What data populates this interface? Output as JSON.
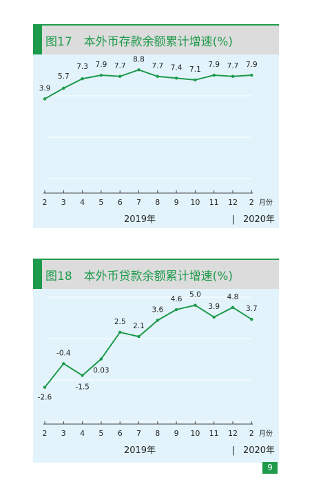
{
  "page_number": "9",
  "chart_data": [
    {
      "type": "line",
      "title": "图17　本外币存款余额累计增速(%)",
      "categories": [
        "2",
        "3",
        "4",
        "5",
        "6",
        "7",
        "8",
        "9",
        "10",
        "11",
        "12",
        "2"
      ],
      "x_unit": "月份",
      "year_labels": [
        "2019年",
        "|",
        "2020年"
      ],
      "values": [
        3.9,
        5.7,
        7.3,
        7.9,
        7.7,
        8.8,
        7.7,
        7.4,
        7.1,
        7.9,
        7.7,
        7.9
      ],
      "data_labels": [
        "3.9",
        "5.7",
        "7.3",
        "7.9",
        "7.7",
        "8.8",
        "7.7",
        "7.4",
        "7.1",
        "7.9",
        "7.7",
        "7.9"
      ],
      "ylim": [
        -12,
        10
      ],
      "grid": true,
      "line_color": "#1d9a4a"
    },
    {
      "type": "line",
      "title": "图18　本外币贷款余额累计增速(%)",
      "categories": [
        "2",
        "3",
        "4",
        "5",
        "6",
        "7",
        "8",
        "9",
        "10",
        "11",
        "12",
        "2"
      ],
      "x_unit": "月份",
      "year_labels": [
        "2019年",
        "|",
        "2020年"
      ],
      "values": [
        -2.6,
        -0.4,
        -1.5,
        0.03,
        2.5,
        2.1,
        3.6,
        4.6,
        5.0,
        3.9,
        4.8,
        3.7
      ],
      "data_labels": [
        "-2.6",
        "-0.4",
        "-1.5",
        "0.03",
        "2.5",
        "2.1",
        "3.6",
        "4.6",
        "5.0",
        "3.9",
        "4.8",
        "3.7"
      ],
      "ylim": [
        -6,
        6
      ],
      "grid": true,
      "line_color": "#1d9a4a"
    }
  ]
}
